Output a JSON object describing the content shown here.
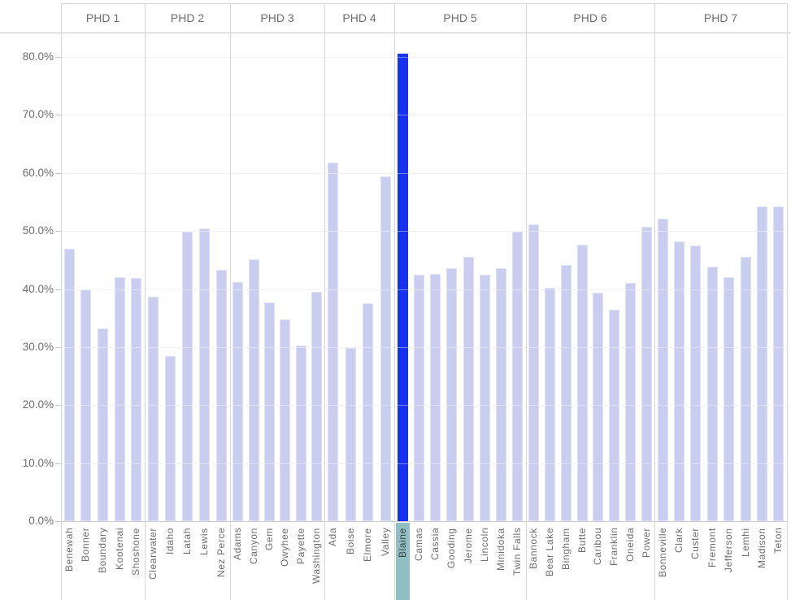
{
  "chart_data": {
    "type": "bar",
    "title": "",
    "xlabel": "",
    "ylabel": "",
    "ylim": [
      0,
      84
    ],
    "grid": true,
    "legend": "none",
    "y_axis": {
      "tick_values": [
        0,
        10,
        20,
        30,
        40,
        50,
        60,
        70,
        80
      ],
      "tick_labels": [
        "0.0%",
        "10.0%",
        "20.0%",
        "30.0%",
        "40.0%",
        "50.0%",
        "60.0%",
        "70.0%",
        "80.0%"
      ]
    },
    "groups": [
      {
        "label": "PHD 1",
        "categories": [
          "Benewah",
          "Bonner",
          "Boundary",
          "Kootenai",
          "Shoshone"
        ],
        "values": [
          46.9,
          39.9,
          33.2,
          42.1,
          41.9
        ]
      },
      {
        "label": "PHD 2",
        "categories": [
          "Clearwater",
          "Idaho",
          "Latah",
          "Lewis",
          "Nez Perce"
        ],
        "values": [
          38.6,
          28.4,
          49.9,
          50.4,
          43.3
        ]
      },
      {
        "label": "PHD 3",
        "categories": [
          "Adams",
          "Canyon",
          "Gem",
          "Owyhee",
          "Payette",
          "Washington"
        ],
        "values": [
          41.2,
          45.1,
          37.7,
          34.7,
          30.2,
          39.5
        ]
      },
      {
        "label": "PHD 4",
        "categories": [
          "Ada",
          "Boise",
          "Elmore",
          "Valley"
        ],
        "values": [
          61.8,
          29.8,
          37.5,
          59.4
        ]
      },
      {
        "label": "PHD 5",
        "categories": [
          "Blaine",
          "Camas",
          "Cassia",
          "Gooding",
          "Jerome",
          "Lincoln",
          "Minidoka",
          "Twin Falls"
        ],
        "values": [
          80.5,
          42.4,
          42.6,
          43.6,
          45.5,
          42.4,
          43.6,
          49.9
        ]
      },
      {
        "label": "PHD 6",
        "categories": [
          "Bannock",
          "Bear Lake",
          "Bingham",
          "Butte",
          "Caribou",
          "Franklin",
          "Oneida",
          "Power"
        ],
        "values": [
          51.1,
          40.2,
          44.1,
          47.6,
          39.3,
          36.4,
          41.0,
          50.7
        ]
      },
      {
        "label": "PHD 7",
        "categories": [
          "Bonneville",
          "Clark",
          "Custer",
          "Fremont",
          "Jefferson",
          "Lemhi",
          "Madison",
          "Teton"
        ],
        "values": [
          52.1,
          48.2,
          47.5,
          43.8,
          42.0,
          45.5,
          54.2,
          54.2
        ]
      }
    ],
    "highlighted_category": "Blaine",
    "colors": {
      "bar_fill": "#c9cdf0",
      "bar_edge": "#dde1f7",
      "highlight_bar_fill": "#1732ee",
      "highlight_label_bg": "#8fbec3",
      "highlight_label_text": "#3f4444",
      "axis_text": "#6d6d70",
      "gridline": "#ececef",
      "separator": "#d6d6d8",
      "axis_line": "#c9c9cc",
      "background": "#ffffff"
    }
  }
}
